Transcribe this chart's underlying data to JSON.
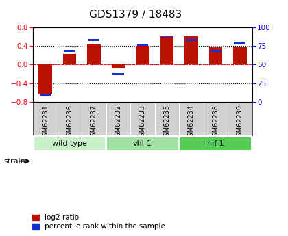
{
  "title": "GDS1379 / 18483",
  "samples": [
    "GSM62231",
    "GSM62236",
    "GSM62237",
    "GSM62232",
    "GSM62233",
    "GSM62235",
    "GSM62234",
    "GSM62238",
    "GSM62239"
  ],
  "log2_ratio": [
    -0.62,
    0.22,
    0.43,
    -0.08,
    0.4,
    0.6,
    0.6,
    0.37,
    0.38
  ],
  "percentile": [
    10,
    68,
    83,
    38,
    76,
    86,
    83,
    68,
    79
  ],
  "groups": [
    {
      "label": "wild type",
      "start": 0,
      "end": 3,
      "color": "#c8f0c8"
    },
    {
      "label": "vhl-1",
      "start": 3,
      "end": 6,
      "color": "#a0e0a0"
    },
    {
      "label": "hif-1",
      "start": 6,
      "end": 9,
      "color": "#55cc55"
    }
  ],
  "ylim": [
    -0.8,
    0.8
  ],
  "y2lim": [
    0,
    100
  ],
  "yticks": [
    -0.8,
    -0.4,
    0.0,
    0.4,
    0.8
  ],
  "y2ticks": [
    0,
    25,
    50,
    75,
    100
  ],
  "bar_color_red": "#bb1100",
  "bar_color_blue": "#1133cc",
  "background_color": "#ffffff",
  "plot_bg": "#ffffff",
  "bar_width": 0.55,
  "title_fontsize": 11,
  "label_fontsize": 7,
  "legend_fontsize": 7.5,
  "group_fontsize": 8
}
